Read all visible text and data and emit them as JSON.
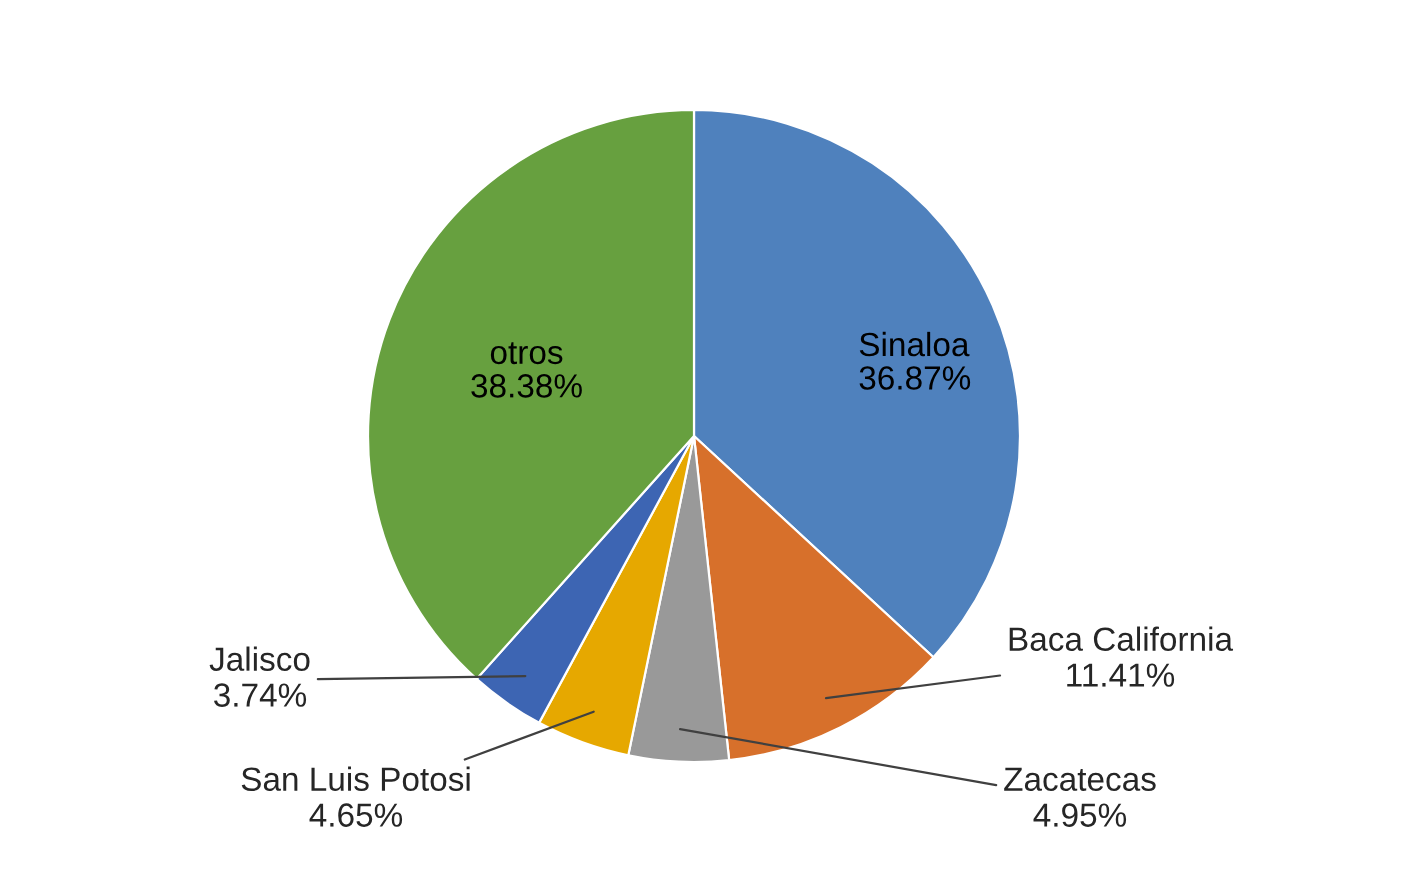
{
  "chart_data": {
    "type": "pie",
    "categories": [
      "Sinaloa",
      "Baca California",
      "Zacatecas",
      "San Luis Potosi",
      "Jalisco",
      "otros"
    ],
    "values": [
      36.87,
      11.41,
      4.95,
      4.65,
      3.74,
      38.38
    ],
    "value_labels": [
      "36.87%",
      "11.41%",
      "4.95%",
      "4.65%",
      "3.74%",
      "38.38%"
    ],
    "colors": [
      "#4f81bd",
      "#d7702b",
      "#999999",
      "#e6a800",
      "#3d65b3",
      "#67a03f"
    ],
    "legend": false
  }
}
